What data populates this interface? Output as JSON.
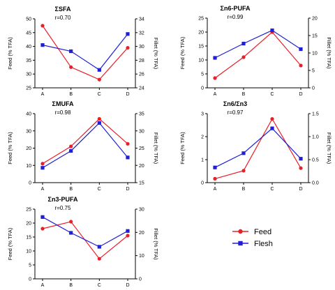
{
  "legend": {
    "items": [
      {
        "name": "Feed",
        "color": "#e8202a",
        "marker": "circle"
      },
      {
        "name": "Flesh",
        "color": "#1f1fd6",
        "marker": "square"
      }
    ]
  },
  "chart_data": [
    {
      "type": "line",
      "title": "ΣSFA",
      "annotation": "r=0.70",
      "xlabel": "",
      "ylabel": "Feed (% TFA)",
      "y2label": "Fillet (% TFA)",
      "categories": [
        "A",
        "B",
        "C",
        "D"
      ],
      "ylim": [
        25,
        50
      ],
      "yticks": [
        25,
        30,
        35,
        40,
        45,
        50
      ],
      "y2lim": [
        24,
        34
      ],
      "y2ticks": [
        24,
        26,
        28,
        30,
        32,
        34
      ],
      "series": [
        {
          "name": "Feed",
          "axis": "left",
          "values": [
            47.5,
            32.5,
            28,
            39.5
          ]
        },
        {
          "name": "Flesh",
          "axis": "right",
          "values": [
            30.2,
            29.3,
            26.6,
            31.8
          ]
        }
      ]
    },
    {
      "type": "line",
      "title": "Σn6-PUFA",
      "annotation": "r=0.99",
      "xlabel": "",
      "ylabel": "Feed (% TFA)",
      "y2label": "Fillet (% TFA)",
      "categories": [
        "A",
        "B",
        "C",
        "D"
      ],
      "ylim": [
        0,
        25
      ],
      "yticks": [
        0,
        5,
        10,
        15,
        20,
        25
      ],
      "y2lim": [
        0,
        20
      ],
      "y2ticks": [
        0,
        5,
        10,
        15,
        20
      ],
      "series": [
        {
          "name": "Feed",
          "axis": "left",
          "values": [
            3.5,
            11,
            20,
            8
          ]
        },
        {
          "name": "Flesh",
          "axis": "right",
          "values": [
            8.6,
            12.7,
            16.5,
            11.1
          ]
        }
      ]
    },
    {
      "type": "line",
      "title": "ΣMUFA",
      "annotation": "r=0.98",
      "xlabel": "",
      "ylabel": "Feed (% TFA)",
      "y2label": "Fillet (% TFA)",
      "categories": [
        "A",
        "B",
        "C",
        "D"
      ],
      "ylim": [
        0,
        40
      ],
      "yticks": [
        0,
        10,
        20,
        30,
        40
      ],
      "y2lim": [
        15,
        35
      ],
      "y2ticks": [
        15,
        20,
        25,
        30,
        35
      ],
      "series": [
        {
          "name": "Feed",
          "axis": "left",
          "values": [
            11,
            21,
            37,
            22.5
          ]
        },
        {
          "name": "Flesh",
          "axis": "right",
          "values": [
            19.3,
            24.2,
            32.3,
            22.3
          ]
        }
      ]
    },
    {
      "type": "line",
      "title": "Σn6/Σn3",
      "annotation": "r=0.97",
      "xlabel": "",
      "ylabel": "Feed (% TFA)",
      "y2label": "Fillet (% TFA)",
      "categories": [
        "A",
        "B",
        "C",
        "D"
      ],
      "ylim": [
        0,
        3
      ],
      "yticks": [
        0,
        1,
        2,
        3
      ],
      "y2lim": [
        0,
        1.5
      ],
      "y2ticks": [
        0.0,
        0.5,
        1.0,
        1.5
      ],
      "series": [
        {
          "name": "Feed",
          "axis": "left",
          "values": [
            0.17,
            0.52,
            2.77,
            0.63
          ]
        },
        {
          "name": "Flesh",
          "axis": "right",
          "values": [
            0.33,
            0.64,
            1.18,
            0.52
          ]
        }
      ]
    },
    {
      "type": "line",
      "title": "Σn3-PUFA",
      "annotation": "r=0.75",
      "xlabel": "",
      "ylabel": "Feed (% TFA)",
      "y2label": "Fillet (% TFA)",
      "categories": [
        "A",
        "B",
        "C",
        "D"
      ],
      "ylim": [
        0,
        25
      ],
      "yticks": [
        0,
        5,
        10,
        15,
        20,
        25
      ],
      "y2lim": [
        0,
        30
      ],
      "y2ticks": [
        0,
        10,
        20,
        30
      ],
      "series": [
        {
          "name": "Feed",
          "axis": "left",
          "values": [
            18,
            20.5,
            7.2,
            15.5
          ]
        },
        {
          "name": "Flesh",
          "axis": "right",
          "values": [
            26.6,
            19.8,
            13.8,
            20.6
          ]
        }
      ]
    }
  ]
}
